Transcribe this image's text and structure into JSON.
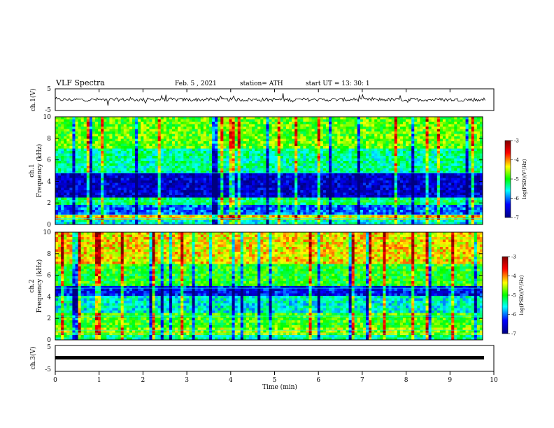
{
  "header": {
    "title": "VLF Spectra",
    "date": "Feb. 5 , 2021",
    "station": "station= ATH",
    "start": "start UT = 13: 30: 1"
  },
  "panels": {
    "ch1_signal": {
      "ylabel": "ch.1(V)",
      "ytick_top": "5",
      "ytick_bottom": "-5"
    },
    "ch1_spec": {
      "ylabel_ch": "ch.1",
      "ylabel": "Frequency (kHz)",
      "yticks": [
        "0",
        "2",
        "4",
        "6",
        "8",
        "10"
      ]
    },
    "ch2_spec": {
      "ylabel_ch": "ch.2",
      "ylabel": "Frequency (kHz)",
      "yticks": [
        "0",
        "2",
        "4",
        "6",
        "8",
        "10"
      ]
    },
    "ch3_signal": {
      "ylabel": "ch.3(V)",
      "ytick_top": "5",
      "ytick_bottom": "-5"
    }
  },
  "xaxis": {
    "label": "Time (min)",
    "ticks": [
      "0",
      "1",
      "2",
      "3",
      "4",
      "5",
      "6",
      "7",
      "8",
      "9",
      "10"
    ]
  },
  "colorbar": {
    "label": "log(PSD)(V²/Hz)",
    "ticks": [
      "-3",
      "-4",
      "-5",
      "-6",
      "-7"
    ]
  },
  "colors": {
    "cmap": [
      "#000080",
      "#0000ff",
      "#00ffff",
      "#00ff00",
      "#ffff00",
      "#ff0000",
      "#800000"
    ]
  },
  "chart_data": [
    {
      "type": "line",
      "title": "",
      "ylabel": "ch.1(V)",
      "xlabel": "",
      "xlim": [
        0,
        10
      ],
      "ylim": [
        -5,
        5
      ],
      "series": [
        {
          "values_note_constant": 0
        }
      ]
    },
    {
      "type": "heatmap",
      "ylabel": "Frequency (kHz)",
      "xlim": [
        0,
        10
      ],
      "ylim": [
        0,
        10
      ],
      "zlim": [
        -7,
        -3
      ],
      "band_levels": [
        {
          "f": [
            0.0,
            0.5
          ],
          "z": -5.6
        },
        {
          "f": [
            0.5,
            1.0
          ],
          "z": -4.3
        },
        {
          "f": [
            1.0,
            1.8
          ],
          "z": -6.1
        },
        {
          "f": [
            1.8,
            2.4
          ],
          "z": -5.2
        },
        {
          "f": [
            2.4,
            4.8
          ],
          "z": -6.6
        },
        {
          "f": [
            4.8,
            7.0
          ],
          "z": -5.4
        },
        {
          "f": [
            7.0,
            10.0
          ],
          "z": -4.8
        }
      ]
    },
    {
      "type": "heatmap",
      "ylabel": "Frequency (kHz)",
      "xlim": [
        0,
        10
      ],
      "ylim": [
        0,
        10
      ],
      "zlim": [
        -7,
        -3
      ],
      "band_levels": [
        {
          "f": [
            0.0,
            0.5
          ],
          "z": -5.4
        },
        {
          "f": [
            0.5,
            1.2
          ],
          "z": -4.6
        },
        {
          "f": [
            1.2,
            2.4
          ],
          "z": -4.9
        },
        {
          "f": [
            2.4,
            4.0
          ],
          "z": -5.6
        },
        {
          "f": [
            4.0,
            5.0
          ],
          "z": -6.4
        },
        {
          "f": [
            5.0,
            7.0
          ],
          "z": -5.0
        },
        {
          "f": [
            7.0,
            10.0
          ],
          "z": -4.3
        }
      ]
    },
    {
      "type": "line",
      "ylabel": "ch.3(V)",
      "xlabel": "Time (min)",
      "xlim": [
        0,
        10
      ],
      "ylim": [
        -5,
        5
      ]
    }
  ]
}
